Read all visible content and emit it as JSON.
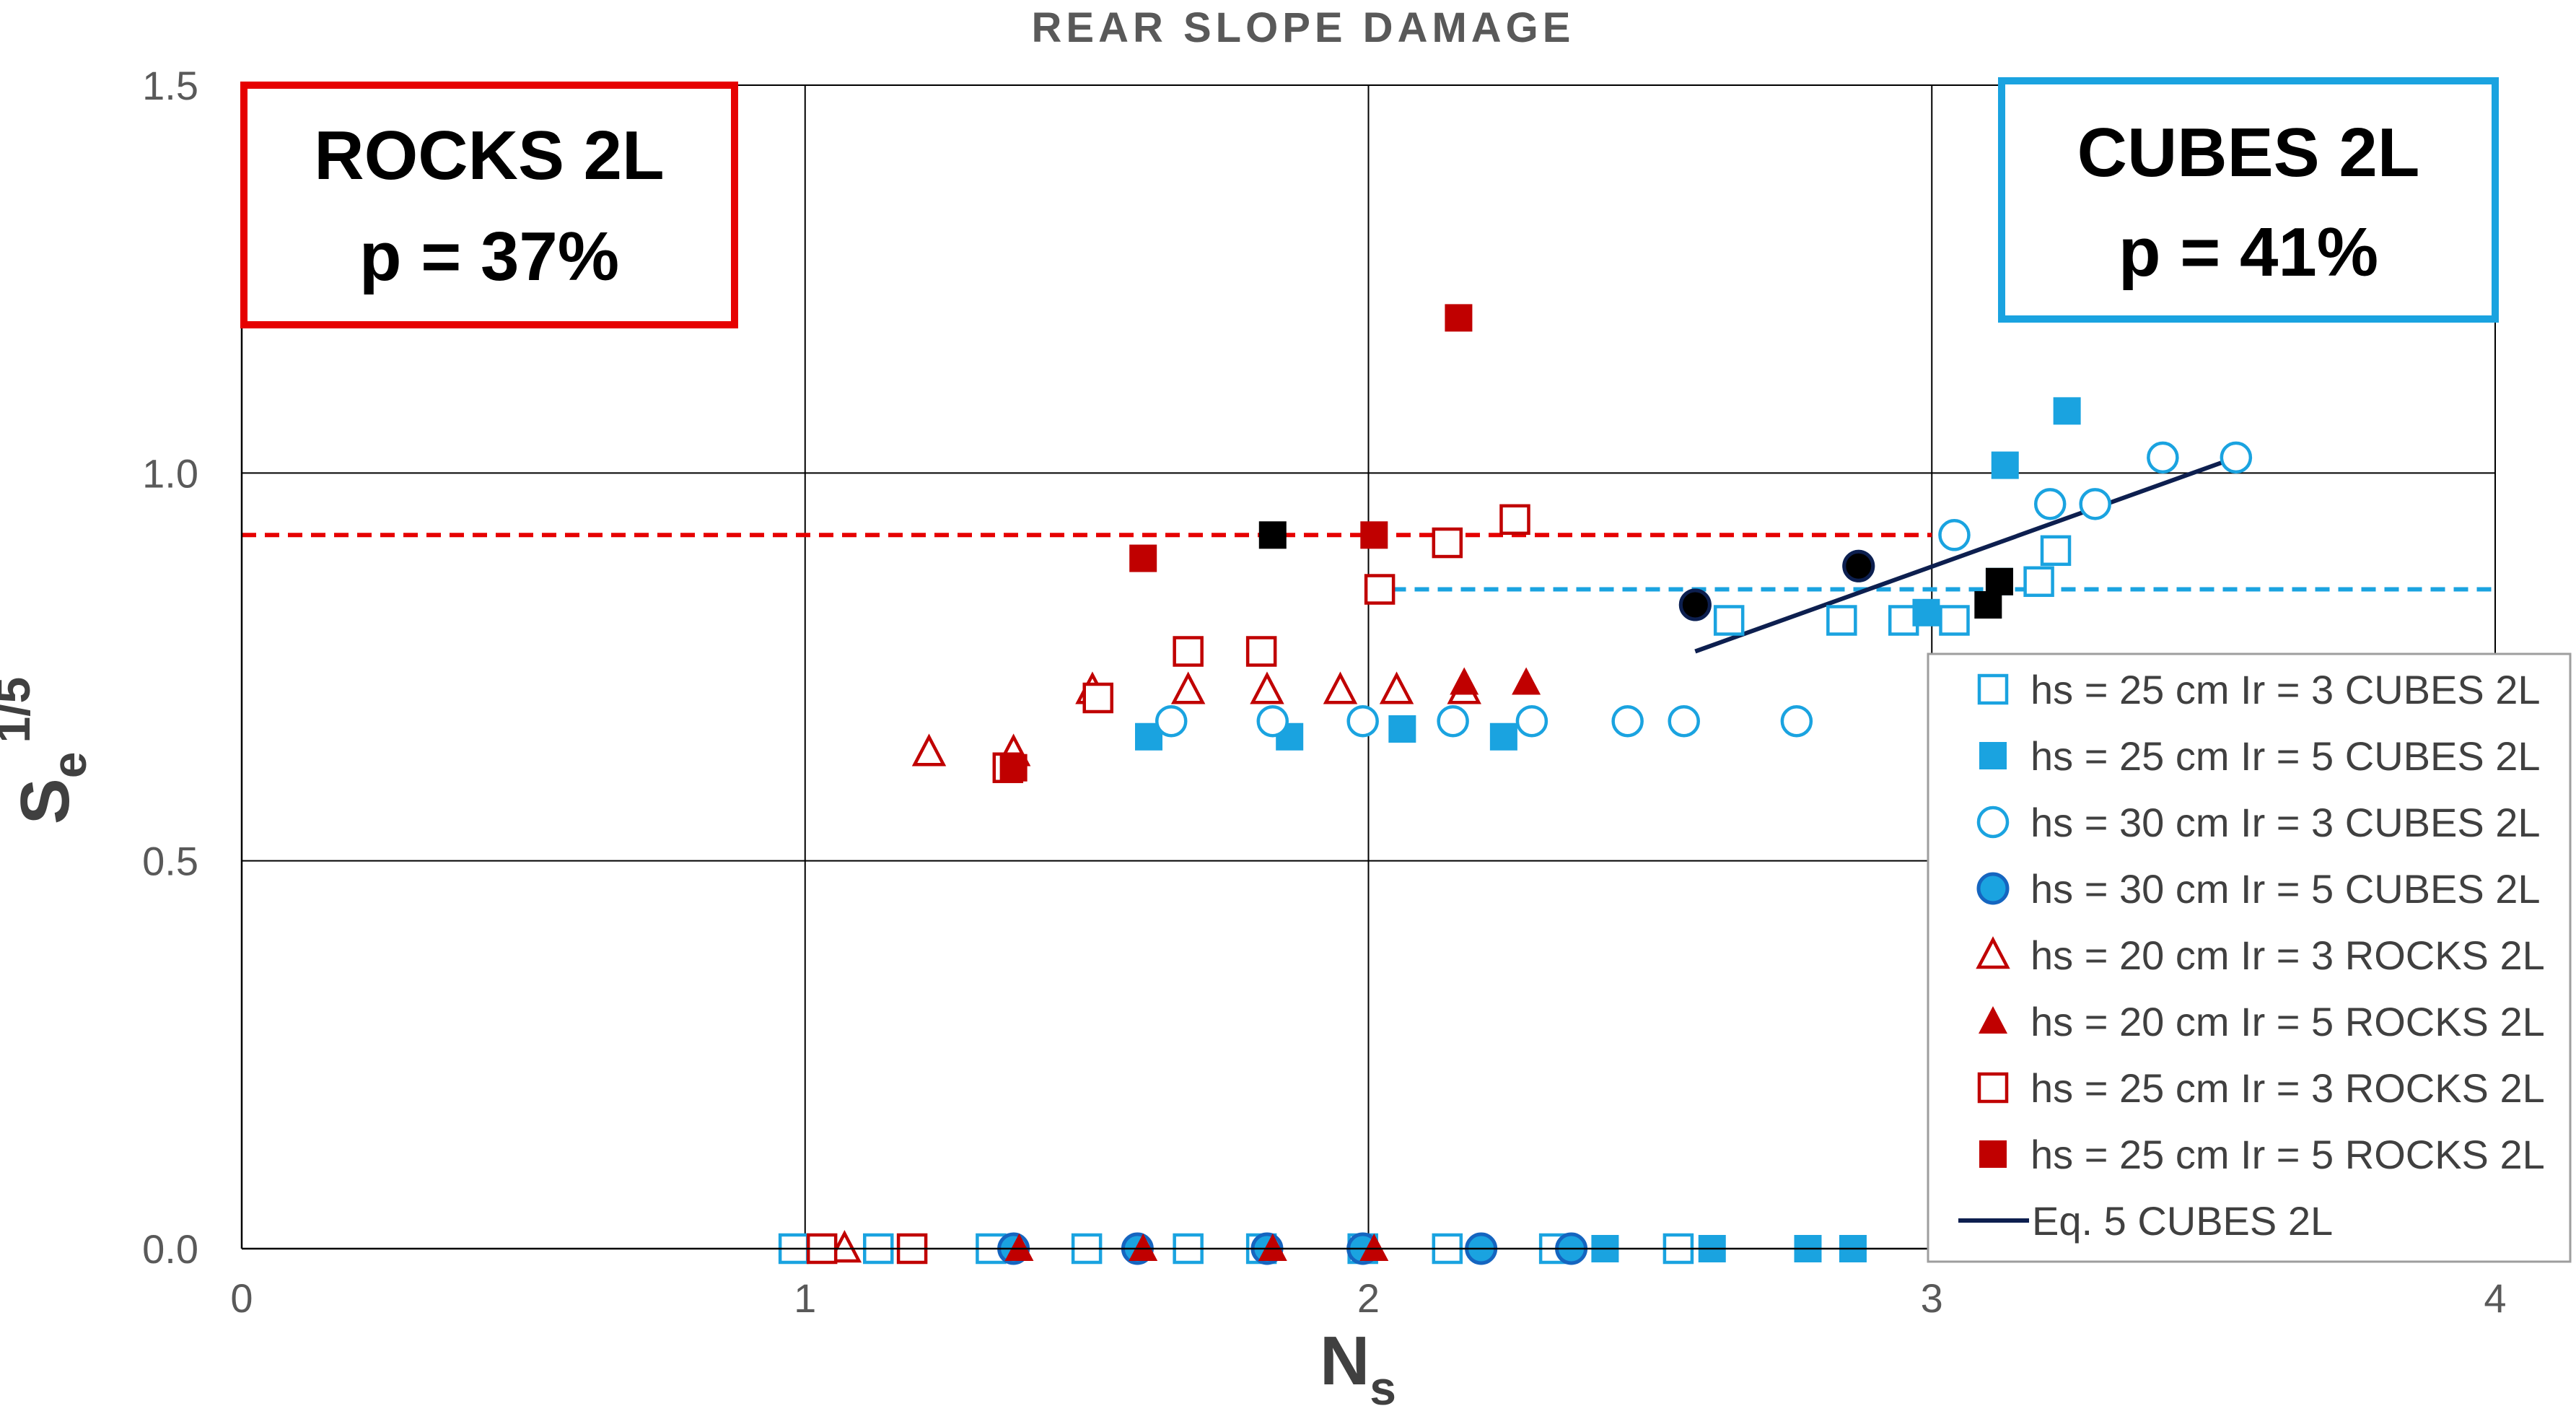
{
  "chart_data": {
    "type": "scatter",
    "title": "REAR SLOPE DAMAGE",
    "xlabel": "N",
    "xlabel_sub": "s",
    "ylabel": "S",
    "ylabel_sub": "e",
    "ylabel_sup": "1/5",
    "xlim": [
      0,
      4
    ],
    "ylim": [
      0,
      1.5
    ],
    "x_ticks": [
      0,
      1,
      2,
      3,
      4
    ],
    "x_tick_labels": [
      "0",
      "1",
      "2",
      "3",
      "4"
    ],
    "y_ticks": [
      0,
      0.5,
      1.0,
      1.5
    ],
    "y_tick_labels": [
      "0.0",
      "0.5",
      "1.0",
      "1.5"
    ],
    "grid": true,
    "legend_position": "right",
    "annotations": [
      {
        "name": "rocks-annotation",
        "line1": "ROCKS 2L",
        "line2": "p = 37%",
        "color": "#e60000",
        "corner": "top-left"
      },
      {
        "name": "cubes-annotation",
        "line1": "CUBES 2L",
        "line2": "p = 41%",
        "color": "#1aa3e0",
        "corner": "top-right"
      }
    ],
    "reference_lines": [
      {
        "name": "rocks-threshold-line",
        "x0": 0,
        "x1": 3.0,
        "y": 0.92,
        "color": "#e60000"
      },
      {
        "name": "cubes-threshold-line",
        "x0": 2.0,
        "x1": 4.0,
        "y": 0.85,
        "color": "#1aa3e0"
      }
    ],
    "series": [
      {
        "name": "hs = 25 cm Ir = 3 CUBES 2L",
        "marker": "square-open",
        "color": "#1aa3e0",
        "points": [
          [
            0.98,
            0
          ],
          [
            1.13,
            0
          ],
          [
            1.33,
            0
          ],
          [
            1.5,
            0
          ],
          [
            1.68,
            0
          ],
          [
            1.81,
            0
          ],
          [
            1.99,
            0
          ],
          [
            2.14,
            0
          ],
          [
            2.33,
            0
          ],
          [
            2.55,
            0
          ],
          [
            2.64,
            0.81
          ],
          [
            2.84,
            0.81
          ],
          [
            2.95,
            0.81
          ],
          [
            3.04,
            0.81
          ],
          [
            3.19,
            0.86
          ],
          [
            3.22,
            0.9
          ]
        ]
      },
      {
        "name": "hs = 25 cm Ir = 5 CUBES 2L",
        "marker": "square-filled",
        "color": "#1aa3e0",
        "points": [
          [
            2.42,
            0
          ],
          [
            2.61,
            0
          ],
          [
            2.78,
            0
          ],
          [
            2.86,
            0
          ],
          [
            1.61,
            0.66
          ],
          [
            1.86,
            0.66
          ],
          [
            2.06,
            0.67
          ],
          [
            2.24,
            0.66
          ],
          [
            2.99,
            0.82
          ],
          [
            3.12,
            0.86
          ],
          [
            3.13,
            1.01
          ],
          [
            3.24,
            1.08
          ]
        ]
      },
      {
        "name": "hs = 30 cm Ir = 3 CUBES 2L",
        "marker": "circle-open",
        "color": "#1aa3e0",
        "points": [
          [
            1.65,
            0.68
          ],
          [
            1.83,
            0.68
          ],
          [
            1.99,
            0.68
          ],
          [
            2.15,
            0.68
          ],
          [
            2.29,
            0.68
          ],
          [
            2.46,
            0.68
          ],
          [
            2.56,
            0.68
          ],
          [
            2.76,
            0.68
          ],
          [
            3.04,
            0.92
          ],
          [
            3.21,
            0.96
          ],
          [
            3.29,
            0.96
          ],
          [
            3.41,
            1.02
          ],
          [
            3.54,
            1.02
          ]
        ]
      },
      {
        "name": "hs = 30 cm Ir = 5 CUBES 2L",
        "marker": "circle-filled",
        "color": "#1aa3e0",
        "points": [
          [
            1.37,
            0
          ],
          [
            1.59,
            0
          ],
          [
            1.82,
            0
          ],
          [
            1.99,
            0
          ],
          [
            2.2,
            0
          ],
          [
            2.36,
            0
          ],
          [
            2.58,
            0.83
          ],
          [
            2.87,
            0.88
          ]
        ]
      },
      {
        "name": "hs = 20 cm Ir = 3 ROCKS 2L",
        "marker": "triangle-open",
        "color": "#c00000",
        "points": [
          [
            1.07,
            0
          ],
          [
            1.22,
            0.64
          ],
          [
            1.37,
            0.64
          ],
          [
            1.51,
            0.72
          ],
          [
            1.68,
            0.72
          ],
          [
            1.82,
            0.72
          ],
          [
            1.95,
            0.72
          ],
          [
            2.05,
            0.72
          ],
          [
            2.17,
            0.72
          ]
        ]
      },
      {
        "name": "hs = 20 cm Ir = 5 ROCKS 2L",
        "marker": "triangle-filled",
        "color": "#c00000",
        "points": [
          [
            1.38,
            0
          ],
          [
            1.6,
            0
          ],
          [
            1.83,
            0
          ],
          [
            2.01,
            0
          ],
          [
            2.17,
            0.73
          ],
          [
            2.28,
            0.73
          ]
        ]
      },
      {
        "name": "hs = 25 cm Ir = 3 ROCKS 2L",
        "marker": "square-open",
        "color": "#c00000",
        "points": [
          [
            1.03,
            0
          ],
          [
            1.19,
            0
          ],
          [
            1.36,
            0.62
          ],
          [
            1.52,
            0.71
          ],
          [
            1.68,
            0.77
          ],
          [
            1.81,
            0.77
          ],
          [
            2.02,
            0.85
          ],
          [
            2.14,
            0.91
          ],
          [
            2.26,
            0.94
          ]
        ]
      },
      {
        "name": "hs = 25 cm Ir = 5 ROCKS 2L",
        "marker": "square-filled",
        "color": "#c00000",
        "points": [
          [
            1.37,
            0.62
          ],
          [
            1.6,
            0.89
          ],
          [
            2.01,
            0.92
          ],
          [
            2.16,
            1.2
          ]
        ]
      }
    ],
    "extra_points": [
      {
        "marker": "square-filled",
        "color": "#000000",
        "points": [
          [
            1.83,
            0.92
          ],
          [
            3.1,
            0.83
          ],
          [
            3.12,
            0.86
          ]
        ]
      },
      {
        "marker": "circle-filled",
        "color": "#000000",
        "points": [
          [
            2.58,
            0.83
          ],
          [
            2.87,
            0.88
          ]
        ]
      }
    ],
    "trend_lines": [
      {
        "name": "Eq. 5 CUBES 2L",
        "color": "#0d1f4f",
        "x0": 2.58,
        "y0": 0.77,
        "x1": 3.54,
        "y1": 1.02
      }
    ]
  }
}
